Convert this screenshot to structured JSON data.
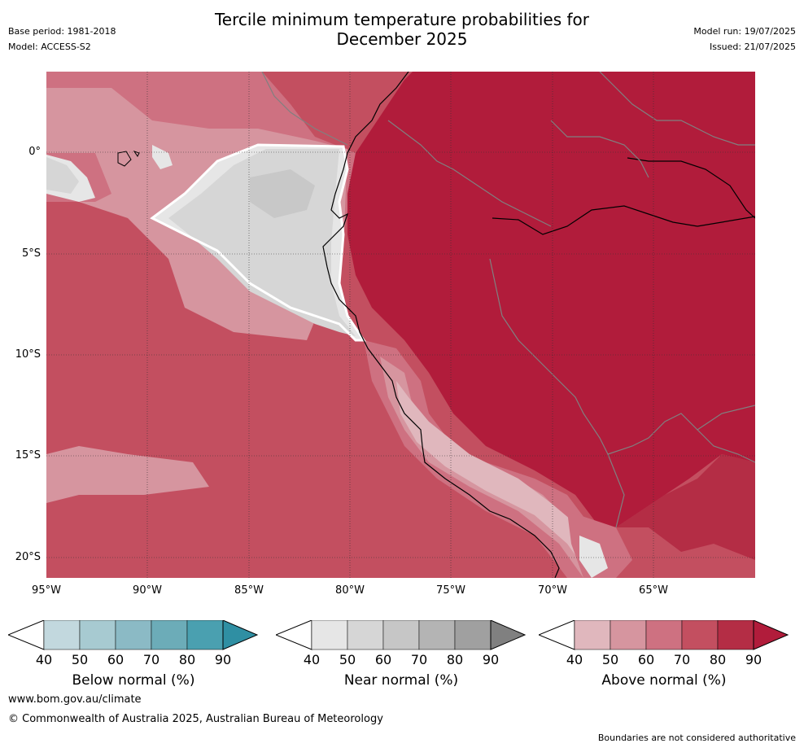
{
  "title": {
    "line1": "Tercile minimum temperature probabilities for",
    "line2": "December 2025"
  },
  "meta": {
    "base_period": "Base period: 1981-2018",
    "model": "Model: ACCESS-S2",
    "model_run": "Model run: 19/07/2025",
    "issued": "Issued: 21/07/2025"
  },
  "map": {
    "lat_ticks": [
      "0°",
      "5°S",
      "10°S",
      "15°S",
      "20°S"
    ],
    "lon_ticks": [
      "95°W",
      "90°W",
      "85°W",
      "80°W",
      "75°W",
      "70°W",
      "65°W"
    ],
    "colors": {
      "above_40": "#ffffff",
      "above_50": "#e0b7bd",
      "above_60": "#d6959f",
      "above_70": "#ce7181",
      "above_80": "#c34f60",
      "above_90": "#b11c3b",
      "near_40": "#e6e6e6",
      "near_50": "#d6d6d6",
      "near_60": "#c8c8c8",
      "coast": "#000000",
      "border": "#808080",
      "grid": "#333333"
    }
  },
  "colorbars": [
    {
      "label": "Below normal (%)",
      "ticks": [
        "40",
        "50",
        "60",
        "70",
        "80",
        "90"
      ],
      "colors": [
        "#ffffff",
        "#c2d8de",
        "#a7cad1",
        "#8bbac5",
        "#6cacb8",
        "#4aa0b0",
        "#2f8fa3"
      ]
    },
    {
      "label": "Near normal (%)",
      "ticks": [
        "40",
        "50",
        "60",
        "70",
        "80",
        "90"
      ],
      "colors": [
        "#ffffff",
        "#e6e6e6",
        "#d6d6d6",
        "#c6c6c6",
        "#b4b4b4",
        "#a0a0a0",
        "#808080"
      ]
    },
    {
      "label": "Above normal (%)",
      "ticks": [
        "40",
        "50",
        "60",
        "70",
        "80",
        "90"
      ],
      "colors": [
        "#ffffff",
        "#e0b7bd",
        "#d6959f",
        "#ce7181",
        "#c34f60",
        "#b42d45",
        "#b11c3b"
      ]
    }
  ],
  "footer": {
    "url": "www.bom.gov.au/climate",
    "copyright": "© Commonwealth of Australia 2025, Australian Bureau of Meteorology",
    "disclaimer": "Boundaries are not considered authoritative"
  }
}
